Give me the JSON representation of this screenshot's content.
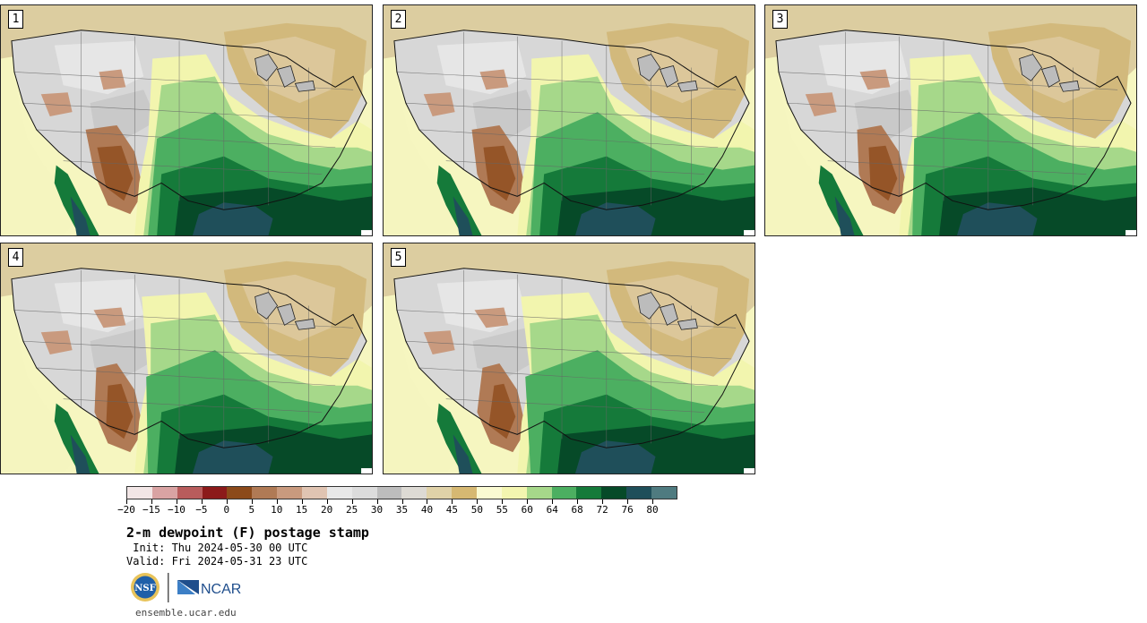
{
  "panels": [
    {
      "label": "1"
    },
    {
      "label": "2"
    },
    {
      "label": "3"
    },
    {
      "label": "4"
    },
    {
      "label": "5"
    }
  ],
  "colorbar": {
    "colors": [
      "#f2e6e6",
      "#d9a3a3",
      "#b85c5c",
      "#8c1a1a",
      "#8c4a1a",
      "#b07a55",
      "#c99a7e",
      "#e0c4b2",
      "#e8e8e8",
      "#dcdcdc",
      "#bdbdbd",
      "#dddad4",
      "#e0d2a8",
      "#d6b872",
      "#fafad2",
      "#f3f5b0",
      "#a6d88a",
      "#4caf61",
      "#157a3a",
      "#064a28",
      "#1f4f5a",
      "#4f7b80"
    ],
    "tick_labels": [
      "−20",
      "−15",
      "−10",
      "−5",
      "0",
      "5",
      "10",
      "15",
      "20",
      "25",
      "30",
      "35",
      "40",
      "45",
      "50",
      "55",
      "60",
      "64",
      "68",
      "72",
      "76",
      "80"
    ]
  },
  "title": "2-m dewpoint (F) postage stamp",
  "init": " Init: Thu 2024-05-30 00 UTC",
  "valid": "Valid: Fri 2024-05-31 23 UTC",
  "logos": {
    "nsf": "NSF",
    "ncar": "NCAR"
  },
  "site": "ensemble.ucar.edu"
}
